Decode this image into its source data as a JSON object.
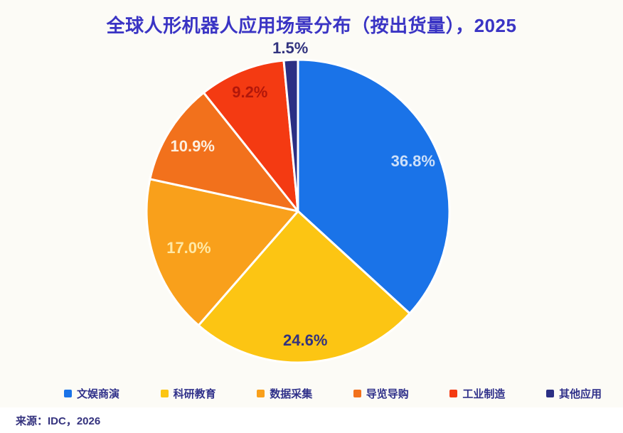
{
  "chart_data": {
    "type": "pie",
    "title": "全球人形机器人应用场景分布（按出货量），2025",
    "value_format": "percent_one_decimal",
    "direction": "clockwise",
    "start_angle_deg": 0,
    "legend_position": "bottom",
    "slices": [
      {
        "label": "文娱商演",
        "value": 36.8,
        "color": "#1A73E8",
        "label_color": "#CDE0F9",
        "label_r": 0.83
      },
      {
        "label": "科研教育",
        "value": 24.6,
        "color": "#FCC513",
        "label_color": "#32337F",
        "label_r": 0.85
      },
      {
        "label": "数据采集",
        "value": 17.0,
        "color": "#F9A01B",
        "label_color": "#FFE9A6",
        "label_r": 0.76
      },
      {
        "label": "导览导购",
        "value": 10.9,
        "color": "#F2711C",
        "label_color": "#FDEFDF",
        "label_r": 0.82
      },
      {
        "label": "工业制造",
        "value": 9.2,
        "color": "#F43A12",
        "label_color": "#B2170A",
        "label_r": 0.85
      },
      {
        "label": "其他应用",
        "value": 1.5,
        "color": "#2B2F84",
        "label_color": "#32337F",
        "label_r": 1.08
      }
    ]
  },
  "source": "来源：IDC，2026"
}
